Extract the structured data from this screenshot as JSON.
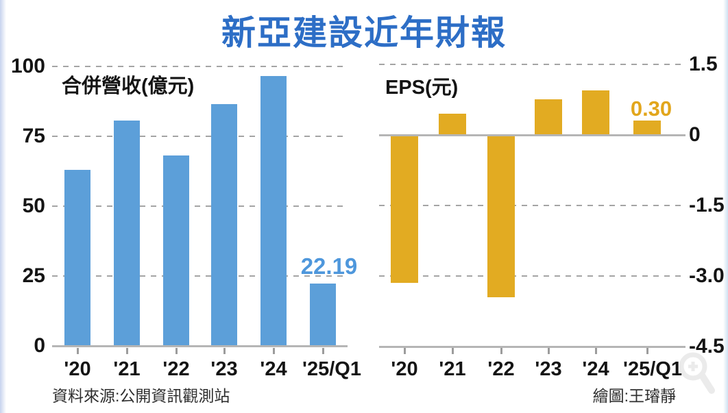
{
  "title": "新亞建設近年財報",
  "footer": {
    "source": "資料來源:公開資訊觀測站",
    "credit": "繪圖:王璿靜"
  },
  "colors": {
    "title_blue": "#2d6ec6",
    "revenue_bar_blue": "#5c9fd9",
    "revenue_annotation_blue": "#4e97dc",
    "eps_bar_gold": "#e2ab22",
    "eps_annotation_gold": "#e2a61c",
    "axis_gray": "#b5b5b5"
  },
  "chart_data": [
    {
      "type": "bar",
      "title": "合併營收(億元)",
      "categories": [
        "'20",
        "'21",
        "'22",
        "'23",
        "'24",
        "'25/Q1"
      ],
      "values": [
        63,
        80.5,
        68,
        86.5,
        96.5,
        22.19
      ],
      "xlabel": "",
      "ylabel": "億元",
      "ylim": [
        0,
        100
      ],
      "yticks": [
        100,
        75,
        50,
        25,
        0
      ],
      "ytick_labels": [
        "100",
        "75",
        "50",
        "25",
        "0"
      ],
      "grid": "dashed-horizontal",
      "bar_color": "#5c9fd9",
      "annotations": [
        {
          "category": "'25/Q1",
          "text": "22.19",
          "color": "#4e97dc"
        }
      ]
    },
    {
      "type": "bar",
      "title": "EPS(元)",
      "categories": [
        "'20",
        "'21",
        "'22",
        "'23",
        "'24",
        "'25/Q1"
      ],
      "values": [
        -3.15,
        0.45,
        -3.45,
        0.75,
        0.95,
        0.3
      ],
      "xlabel": "",
      "ylabel": "元",
      "ylim": [
        -4.5,
        1.5
      ],
      "yticks": [
        1.5,
        0,
        -1.5,
        -3.0,
        -4.5
      ],
      "ytick_labels": [
        "1.5",
        "0",
        "-1.5",
        "-3.0",
        "-4.5"
      ],
      "grid": "dashed-horizontal",
      "bar_color": "#e2ab22",
      "annotations": [
        {
          "category": "'25/Q1",
          "text": "0.30",
          "color": "#e2a61c"
        }
      ]
    }
  ]
}
